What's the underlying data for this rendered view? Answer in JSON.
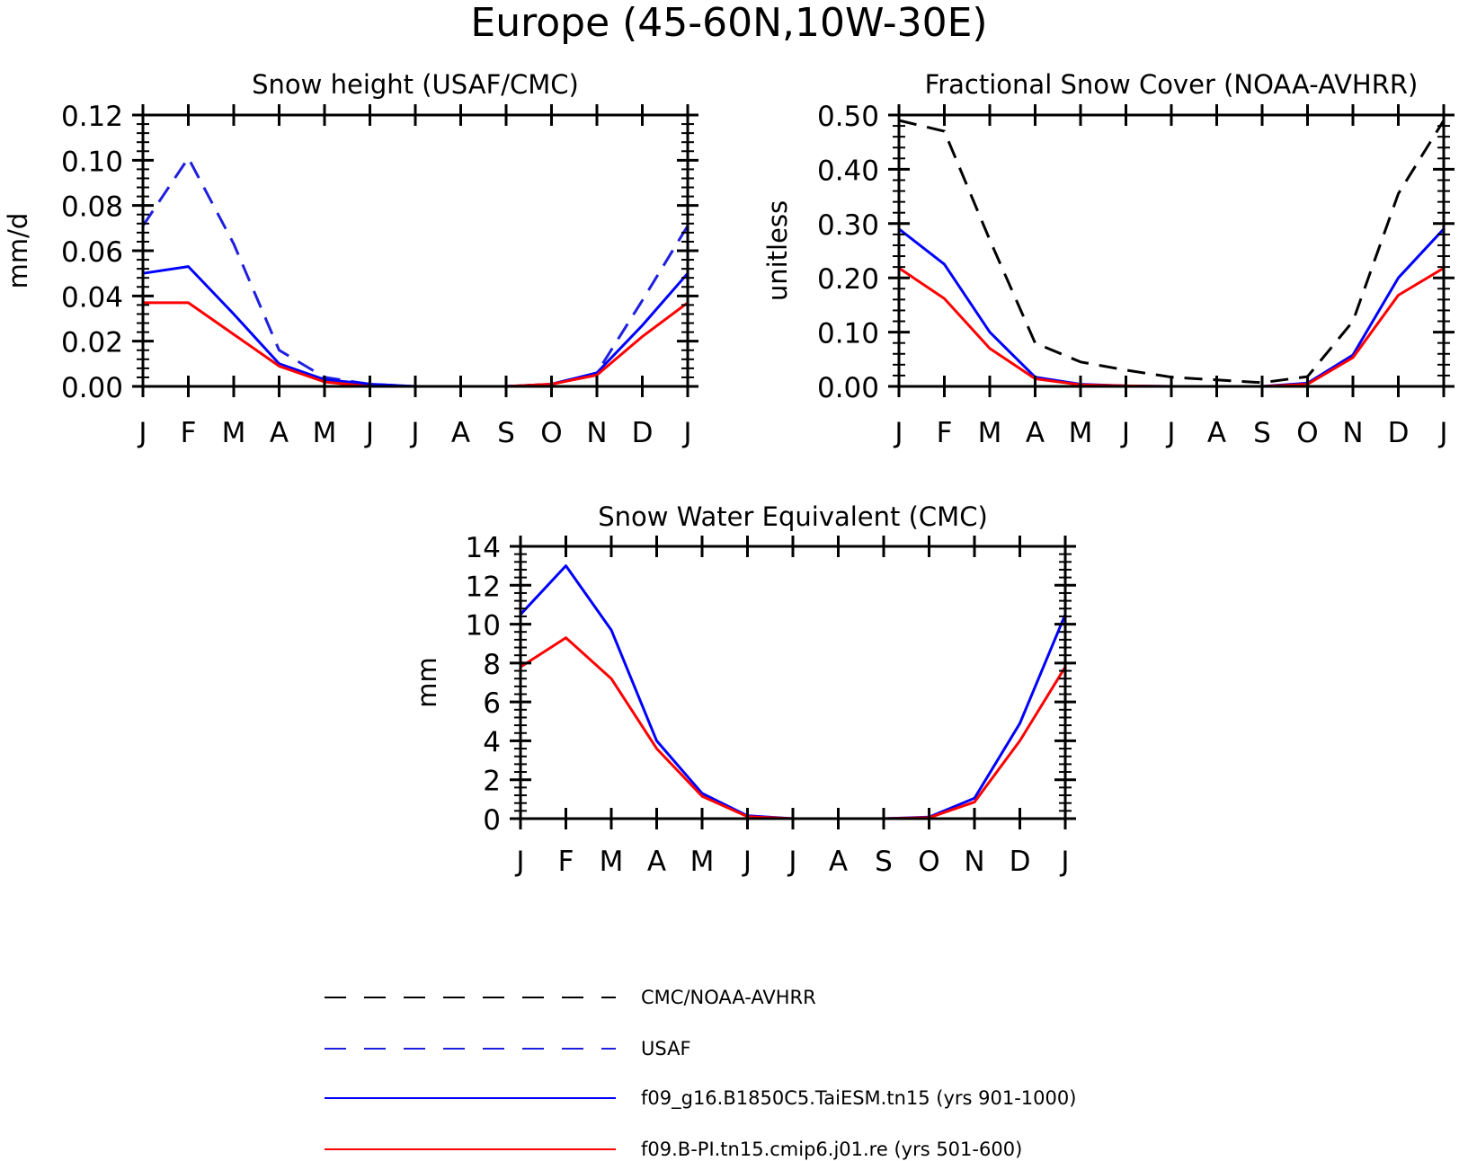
{
  "figure_title": "Europe (45-60N,10W-30E)",
  "months": [
    "J",
    "F",
    "M",
    "A",
    "M",
    "J",
    "J",
    "A",
    "S",
    "O",
    "N",
    "D",
    "J"
  ],
  "colors": {
    "obs": "#000000",
    "usaf": "#1f1fe0",
    "model1": "#0000ff",
    "model2": "#ff0000"
  },
  "legend": {
    "items": [
      {
        "label": "CMC/NOAA-AVHRR",
        "color": "#000000",
        "dashed": true
      },
      {
        "label": "USAF",
        "color": "#1f1fe0",
        "dashed": true
      },
      {
        "label": "f09_g16.B1850C5.TaiESM.tn15 (yrs 901-1000)",
        "color": "#0000ff",
        "dashed": false
      },
      {
        "label": "f09.B-PI.tn15.cmip6.j01.re (yrs 501-600)",
        "color": "#ff0000",
        "dashed": false
      }
    ]
  },
  "chart_data": [
    {
      "type": "line",
      "title": "Snow height (USAF/CMC)",
      "ylabel": "mm/d",
      "xlabel": "",
      "ylim": [
        0,
        0.12
      ],
      "yticks": [
        0.0,
        0.02,
        0.04,
        0.06,
        0.08,
        0.1,
        0.12
      ],
      "ytick_labels": [
        "0.00",
        "0.02",
        "0.04",
        "0.06",
        "0.08",
        "0.10",
        "0.12"
      ],
      "categories": [
        "J",
        "F",
        "M",
        "A",
        "M",
        "J",
        "J",
        "A",
        "S",
        "O",
        "N",
        "D",
        "J"
      ],
      "series": [
        {
          "name": "USAF",
          "dashed": true,
          "color": "#1f1fe0",
          "values": [
            0.071,
            0.101,
            0.063,
            0.016,
            0.004,
            0.001,
            0.0,
            0.0,
            0.0,
            0.001,
            0.006,
            0.038,
            0.071
          ]
        },
        {
          "name": "f09_g16.B1850C5.TaiESM.tn15 (yrs 901-1000)",
          "dashed": false,
          "color": "#0000ff",
          "values": [
            0.05,
            0.053,
            0.032,
            0.01,
            0.003,
            0.001,
            0.0,
            0.0,
            0.0,
            0.001,
            0.006,
            0.027,
            0.05
          ]
        },
        {
          "name": "f09.B-PI.tn15.cmip6.j01.re (yrs 501-600)",
          "dashed": false,
          "color": "#ff0000",
          "values": [
            0.037,
            0.037,
            0.023,
            0.009,
            0.002,
            0.0,
            0.0,
            0.0,
            0.0,
            0.001,
            0.005,
            0.022,
            0.037
          ]
        }
      ]
    },
    {
      "type": "line",
      "title": "Fractional Snow Cover (NOAA-AVHRR)",
      "ylabel": "unitless",
      "xlabel": "",
      "ylim": [
        0,
        0.5
      ],
      "yticks": [
        0.0,
        0.1,
        0.2,
        0.3,
        0.4,
        0.5
      ],
      "ytick_labels": [
        "0.00",
        "0.10",
        "0.20",
        "0.30",
        "0.40",
        "0.50"
      ],
      "categories": [
        "J",
        "F",
        "M",
        "A",
        "M",
        "J",
        "J",
        "A",
        "S",
        "O",
        "N",
        "D",
        "J"
      ],
      "series": [
        {
          "name": "CMC/NOAA-AVHRR",
          "dashed": true,
          "color": "#000000",
          "values": [
            0.49,
            0.47,
            0.27,
            0.08,
            0.045,
            0.03,
            0.017,
            0.012,
            0.007,
            0.018,
            0.12,
            0.355,
            0.49
          ]
        },
        {
          "name": "f09_g16.B1850C5.TaiESM.tn15 (yrs 901-1000)",
          "dashed": false,
          "color": "#0000ff",
          "values": [
            0.29,
            0.225,
            0.1,
            0.017,
            0.004,
            0.001,
            0.0,
            0.0,
            0.0,
            0.006,
            0.058,
            0.2,
            0.29
          ]
        },
        {
          "name": "f09.B-PI.tn15.cmip6.j01.re (yrs 501-600)",
          "dashed": false,
          "color": "#ff0000",
          "values": [
            0.218,
            0.162,
            0.07,
            0.014,
            0.003,
            0.001,
            0.0,
            0.0,
            0.0,
            0.004,
            0.053,
            0.168,
            0.218
          ]
        }
      ]
    },
    {
      "type": "line",
      "title": "Snow Water Equivalent (CMC)",
      "ylabel": "mm",
      "xlabel": "",
      "ylim": [
        0,
        14
      ],
      "yticks": [
        0,
        2,
        4,
        6,
        8,
        10,
        12,
        14
      ],
      "ytick_labels": [
        "0",
        "2",
        "4",
        "6",
        "8",
        "10",
        "12",
        "14"
      ],
      "categories": [
        "J",
        "F",
        "M",
        "A",
        "M",
        "J",
        "J",
        "A",
        "S",
        "O",
        "N",
        "D",
        "J"
      ],
      "series": [
        {
          "name": "f09_g16.B1850C5.TaiESM.tn15 (yrs 901-1000)",
          "dashed": false,
          "color": "#0000ff",
          "values": [
            10.5,
            13.0,
            9.7,
            4.0,
            1.3,
            0.15,
            0.0,
            0.0,
            0.0,
            0.08,
            1.05,
            4.9,
            10.5
          ]
        },
        {
          "name": "f09.B-PI.tn15.cmip6.j01.re (yrs 501-600)",
          "dashed": false,
          "color": "#ff0000",
          "values": [
            7.8,
            9.3,
            7.2,
            3.6,
            1.15,
            0.1,
            0.0,
            0.0,
            0.0,
            0.05,
            0.85,
            4.0,
            7.8
          ]
        }
      ]
    }
  ]
}
